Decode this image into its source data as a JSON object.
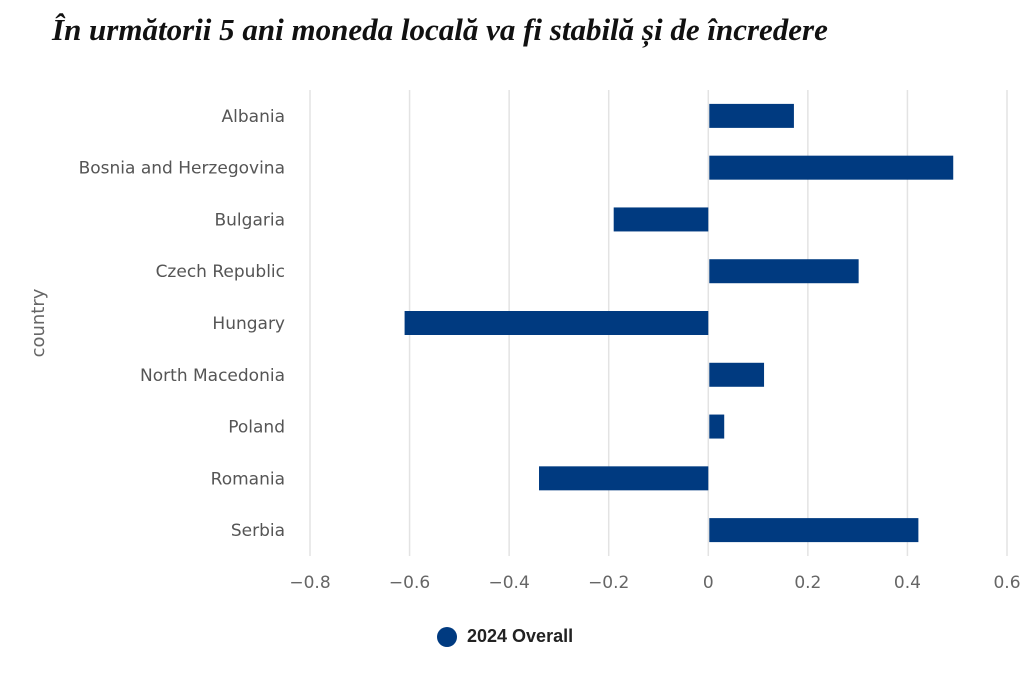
{
  "chart_data": {
    "type": "bar",
    "orientation": "horizontal",
    "title": "În următorii 5 ani moneda locală va fi stabilă și de încredere",
    "ylabel": "country",
    "xlabel": "",
    "categories": [
      "Albania",
      "Bosnia and Herzegovina",
      "Bulgaria",
      "Czech Republic",
      "Hungary",
      "North Macedonia",
      "Poland",
      "Romania",
      "Serbia"
    ],
    "series": [
      {
        "name": "2024 Overall",
        "values": [
          0.17,
          0.49,
          -0.19,
          0.3,
          -0.61,
          0.11,
          0.03,
          -0.34,
          0.42
        ],
        "color": "#003a80"
      }
    ],
    "xlim": [
      -0.8,
      0.6
    ],
    "xticks": [
      -0.8,
      -0.6,
      -0.4,
      -0.2,
      0,
      0.2,
      0.4,
      0.6
    ],
    "xtick_labels": [
      "−0.8",
      "−0.6",
      "−0.4",
      "−0.2",
      "0",
      "0.2",
      "0.4",
      "0.6"
    ],
    "grid": true,
    "legend_position": "bottom-center"
  }
}
